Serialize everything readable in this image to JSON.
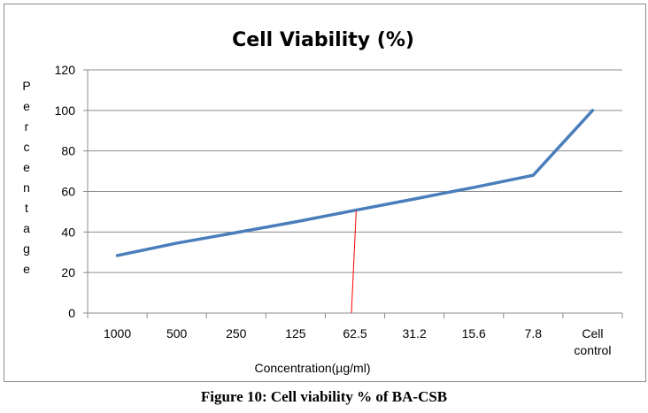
{
  "caption": "Figure 10: Cell viability % of BA-CSB",
  "chart_data": {
    "type": "line",
    "title": "Cell Viability (%)",
    "xlabel": "Concentration(µg/ml)",
    "ylabel": "Percentage",
    "ylabel_letters": [
      "P",
      "e",
      "r",
      "c",
      "e",
      "n",
      "t",
      "a",
      "g",
      "e"
    ],
    "categories": [
      "1000",
      "500",
      "250",
      "125",
      "62.5",
      "31.2",
      "15.6",
      "7.8",
      "Cell control"
    ],
    "category_lines": [
      [
        "1000"
      ],
      [
        "500"
      ],
      [
        "250"
      ],
      [
        "125"
      ],
      [
        "62.5"
      ],
      [
        "31.2"
      ],
      [
        "15.6"
      ],
      [
        "7.8"
      ],
      [
        "Cell",
        "control"
      ]
    ],
    "series": [
      {
        "name": "Cell Viability",
        "color": "#4a7ebb",
        "values": [
          28.4,
          34.5,
          39.7,
          45.0,
          50.7,
          56.3,
          62.0,
          68.0,
          100.0
        ]
      }
    ],
    "ylim": [
      0,
      120
    ],
    "yticks": [
      0,
      20,
      40,
      60,
      80,
      100,
      120
    ],
    "grid": true,
    "legend": "none",
    "annotations": [
      {
        "type": "line",
        "color": "#ff0000",
        "description": "IC50 marker from x-axis near 62.5 up to curve at 50%",
        "x_category_from": 4,
        "x_category_to": 4.08,
        "y_from": 0,
        "y_to": 50.5
      }
    ]
  }
}
